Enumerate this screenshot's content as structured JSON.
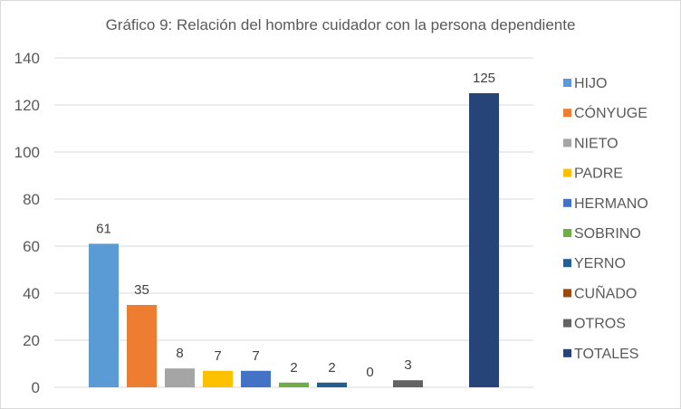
{
  "chart_data": {
    "type": "bar",
    "title": "Gráfico 9: Relación del hombre cuidador con la persona dependiente",
    "xlabel": "",
    "ylabel": "",
    "ylim": [
      0,
      140
    ],
    "yticks": [
      0,
      20,
      40,
      60,
      80,
      100,
      120,
      140
    ],
    "grid": true,
    "legend_position": "right",
    "data_labels": true,
    "series": [
      {
        "name": "HIJO",
        "value": 61,
        "color": "#5B9BD5"
      },
      {
        "name": "CÓNYUGE",
        "value": 35,
        "color": "#ED7D31"
      },
      {
        "name": "NIETO",
        "value": 8,
        "color": "#A5A5A5"
      },
      {
        "name": "PADRE",
        "value": 7,
        "color": "#FFC000"
      },
      {
        "name": "HERMANO",
        "value": 7,
        "color": "#4472C4"
      },
      {
        "name": "SOBRINO",
        "value": 2,
        "color": "#70AD47"
      },
      {
        "name": "YERNO",
        "value": 2,
        "color": "#255E91"
      },
      {
        "name": "CUÑADO",
        "value": 0,
        "color": "#9E480E"
      },
      {
        "name": "OTROS",
        "value": 3,
        "color": "#636363"
      },
      {
        "name": "TOTALES",
        "value": 125,
        "color": "#264478"
      }
    ]
  }
}
